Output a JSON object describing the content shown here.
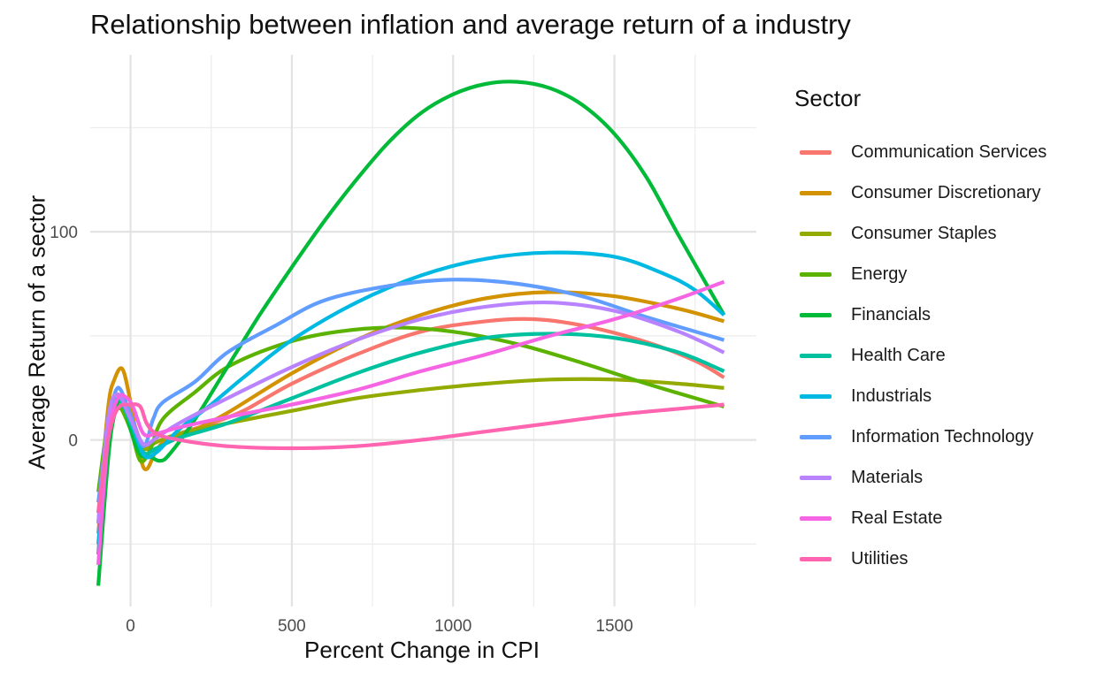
{
  "chart_data": {
    "type": "line",
    "title": "Relationship between inflation and average return of a industry",
    "xlabel": "Percent Change in CPI",
    "ylabel": "Average Return of a sector",
    "legend_title": "Sector",
    "legend_position": "right",
    "grid": true,
    "xlim": [
      -125,
      1940
    ],
    "ylim": [
      -80,
      185
    ],
    "x_ticks": [
      0,
      500,
      1000,
      1500
    ],
    "y_ticks": [
      0,
      100
    ],
    "series": [
      {
        "name": "Communication Services",
        "color": "#F8766D",
        "points": [
          [
            -100,
            -45
          ],
          [
            -70,
            10
          ],
          [
            -40,
            20
          ],
          [
            0,
            12
          ],
          [
            40,
            -3
          ],
          [
            80,
            -1
          ],
          [
            150,
            3
          ],
          [
            250,
            8
          ],
          [
            350,
            14
          ],
          [
            500,
            27
          ],
          [
            700,
            41
          ],
          [
            900,
            52
          ],
          [
            1100,
            57
          ],
          [
            1250,
            58
          ],
          [
            1400,
            55
          ],
          [
            1600,
            47
          ],
          [
            1750,
            38
          ],
          [
            1840,
            30
          ]
        ]
      },
      {
        "name": "Consumer Discretionary",
        "color": "#D39200",
        "points": [
          [
            -100,
            -40
          ],
          [
            -70,
            15
          ],
          [
            -50,
            29
          ],
          [
            -25,
            34
          ],
          [
            0,
            18
          ],
          [
            30,
            -8
          ],
          [
            50,
            -14
          ],
          [
            80,
            -5
          ],
          [
            120,
            1
          ],
          [
            200,
            5
          ],
          [
            300,
            13
          ],
          [
            500,
            32
          ],
          [
            700,
            48
          ],
          [
            900,
            60
          ],
          [
            1100,
            68
          ],
          [
            1300,
            71
          ],
          [
            1500,
            69
          ],
          [
            1700,
            63
          ],
          [
            1840,
            57
          ]
        ]
      },
      {
        "name": "Consumer Staples",
        "color": "#93AA00",
        "points": [
          [
            -100,
            -35
          ],
          [
            -70,
            5
          ],
          [
            -40,
            15
          ],
          [
            0,
            10
          ],
          [
            40,
            -4
          ],
          [
            80,
            -1
          ],
          [
            150,
            3
          ],
          [
            300,
            8
          ],
          [
            500,
            14
          ],
          [
            700,
            20
          ],
          [
            900,
            24
          ],
          [
            1100,
            27
          ],
          [
            1300,
            29
          ],
          [
            1500,
            29
          ],
          [
            1700,
            27
          ],
          [
            1840,
            25
          ]
        ]
      },
      {
        "name": "Energy",
        "color": "#5BB300",
        "points": [
          [
            -100,
            -25
          ],
          [
            -70,
            8
          ],
          [
            -40,
            17
          ],
          [
            0,
            5
          ],
          [
            30,
            -10
          ],
          [
            60,
            -5
          ],
          [
            100,
            10
          ],
          [
            200,
            23
          ],
          [
            300,
            35
          ],
          [
            450,
            45
          ],
          [
            600,
            51
          ],
          [
            800,
            54
          ],
          [
            1000,
            52
          ],
          [
            1200,
            46
          ],
          [
            1400,
            37
          ],
          [
            1600,
            27
          ],
          [
            1840,
            16
          ]
        ]
      },
      {
        "name": "Financials",
        "color": "#00BA38",
        "points": [
          [
            -100,
            -70
          ],
          [
            -70,
            -10
          ],
          [
            -50,
            12
          ],
          [
            -25,
            20
          ],
          [
            0,
            5
          ],
          [
            30,
            -7
          ],
          [
            60,
            -8
          ],
          [
            90,
            -10
          ],
          [
            120,
            -7
          ],
          [
            200,
            10
          ],
          [
            300,
            35
          ],
          [
            400,
            60
          ],
          [
            500,
            83
          ],
          [
            600,
            105
          ],
          [
            700,
            125
          ],
          [
            800,
            143
          ],
          [
            900,
            157
          ],
          [
            1000,
            166
          ],
          [
            1100,
            171
          ],
          [
            1200,
            172
          ],
          [
            1300,
            169
          ],
          [
            1400,
            161
          ],
          [
            1500,
            147
          ],
          [
            1600,
            126
          ],
          [
            1700,
            98
          ],
          [
            1840,
            60
          ]
        ]
      },
      {
        "name": "Health Care",
        "color": "#00C19F",
        "points": [
          [
            -100,
            -55
          ],
          [
            -70,
            5
          ],
          [
            -40,
            20
          ],
          [
            0,
            8
          ],
          [
            40,
            -6
          ],
          [
            80,
            -4
          ],
          [
            150,
            1
          ],
          [
            300,
            8
          ],
          [
            500,
            20
          ],
          [
            700,
            32
          ],
          [
            900,
            42
          ],
          [
            1100,
            49
          ],
          [
            1300,
            51
          ],
          [
            1500,
            49
          ],
          [
            1700,
            42
          ],
          [
            1840,
            33
          ]
        ]
      },
      {
        "name": "Industrials",
        "color": "#00B9E3",
        "points": [
          [
            -100,
            -50
          ],
          [
            -70,
            0
          ],
          [
            -40,
            20
          ],
          [
            0,
            10
          ],
          [
            40,
            -7
          ],
          [
            80,
            -6
          ],
          [
            150,
            5
          ],
          [
            250,
            17
          ],
          [
            350,
            30
          ],
          [
            500,
            48
          ],
          [
            700,
            66
          ],
          [
            900,
            79
          ],
          [
            1100,
            87
          ],
          [
            1300,
            90
          ],
          [
            1500,
            88
          ],
          [
            1650,
            80
          ],
          [
            1750,
            72
          ],
          [
            1840,
            60
          ]
        ]
      },
      {
        "name": "Information Technology",
        "color": "#619CFF",
        "points": [
          [
            -100,
            -30
          ],
          [
            -70,
            5
          ],
          [
            -40,
            25
          ],
          [
            0,
            12
          ],
          [
            40,
            -3
          ],
          [
            70,
            10
          ],
          [
            100,
            18
          ],
          [
            200,
            28
          ],
          [
            300,
            42
          ],
          [
            450,
            55
          ],
          [
            600,
            67
          ],
          [
            800,
            74
          ],
          [
            1000,
            77
          ],
          [
            1200,
            75
          ],
          [
            1400,
            69
          ],
          [
            1600,
            59
          ],
          [
            1840,
            48
          ]
        ]
      },
      {
        "name": "Materials",
        "color": "#B983FF",
        "points": [
          [
            -100,
            -40
          ],
          [
            -70,
            10
          ],
          [
            -40,
            22
          ],
          [
            0,
            10
          ],
          [
            40,
            -2
          ],
          [
            80,
            1
          ],
          [
            150,
            8
          ],
          [
            300,
            20
          ],
          [
            500,
            35
          ],
          [
            700,
            48
          ],
          [
            900,
            58
          ],
          [
            1100,
            64
          ],
          [
            1300,
            66
          ],
          [
            1500,
            62
          ],
          [
            1700,
            52
          ],
          [
            1840,
            42
          ]
        ]
      },
      {
        "name": "Real Estate",
        "color": "#F564E3",
        "points": [
          [
            -100,
            -60
          ],
          [
            -70,
            0
          ],
          [
            -40,
            20
          ],
          [
            -10,
            20
          ],
          [
            10,
            15
          ],
          [
            40,
            3
          ],
          [
            80,
            3
          ],
          [
            150,
            6
          ],
          [
            300,
            11
          ],
          [
            500,
            17
          ],
          [
            700,
            24
          ],
          [
            900,
            33
          ],
          [
            1100,
            41
          ],
          [
            1300,
            50
          ],
          [
            1500,
            58
          ],
          [
            1700,
            68
          ],
          [
            1840,
            76
          ]
        ]
      },
      {
        "name": "Utilities",
        "color": "#FF64B0",
        "points": [
          [
            -100,
            -35
          ],
          [
            -70,
            0
          ],
          [
            -40,
            15
          ],
          [
            0,
            17
          ],
          [
            30,
            16
          ],
          [
            50,
            8
          ],
          [
            80,
            3
          ],
          [
            150,
            0
          ],
          [
            300,
            -3
          ],
          [
            500,
            -4
          ],
          [
            700,
            -3
          ],
          [
            900,
            0
          ],
          [
            1100,
            4
          ],
          [
            1300,
            8
          ],
          [
            1500,
            12
          ],
          [
            1700,
            15
          ],
          [
            1840,
            17
          ]
        ]
      }
    ]
  }
}
